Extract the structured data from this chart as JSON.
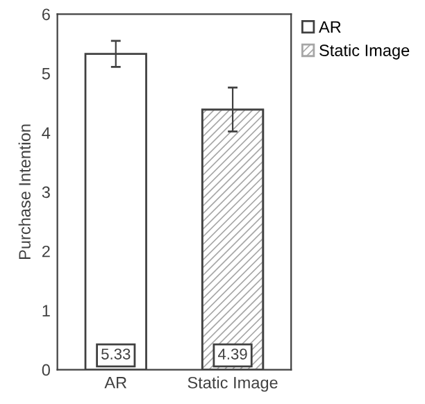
{
  "chart_data": {
    "type": "bar",
    "ylabel": "Purchase Intention",
    "categories": [
      "AR",
      "Static Image"
    ],
    "series": [
      {
        "name": "AR",
        "color": "#ffffff",
        "values": [
          5.33,
          null
        ],
        "errors": [
          0.22,
          null
        ]
      },
      {
        "name": "Static Image",
        "color": "#a6a6a6",
        "values": [
          null,
          4.39
        ],
        "errors": [
          null,
          0.37
        ]
      }
    ],
    "ylim": [
      0,
      6
    ],
    "yticks": [
      0,
      1,
      2,
      3,
      4,
      5,
      6
    ],
    "grid": false,
    "legend": "top right",
    "data_labels": true
  }
}
